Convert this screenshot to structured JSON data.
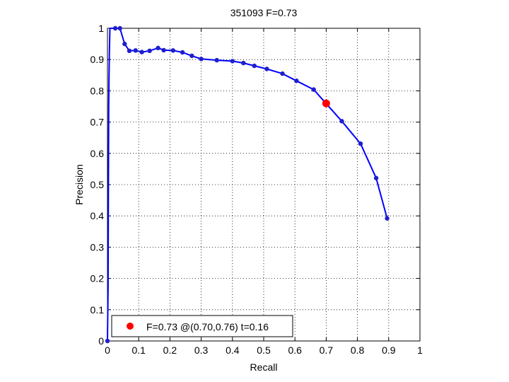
{
  "chart_data": {
    "type": "line",
    "title": "351093 F=0.73",
    "xlabel": "Recall",
    "ylabel": "Precision",
    "xlim": [
      0,
      1
    ],
    "ylim": [
      0,
      1
    ],
    "grid": true,
    "x_ticks": [
      "0",
      "0.1",
      "0.2",
      "0.3",
      "0.4",
      "0.5",
      "0.6",
      "0.7",
      "0.8",
      "0.9",
      "1"
    ],
    "y_ticks": [
      "0",
      "0.1",
      "0.2",
      "0.3",
      "0.4",
      "0.5",
      "0.6",
      "0.7",
      "0.8",
      "0.9",
      "1"
    ],
    "line_color": "#0000ff",
    "marker_color": "#1f1fcc",
    "curve": {
      "points": [
        [
          0.0,
          0.0
        ],
        [
          0.002,
          0.17
        ],
        [
          0.003,
          0.47
        ],
        [
          0.004,
          0.75
        ],
        [
          0.005,
          0.84
        ],
        [
          0.006,
          0.92
        ],
        [
          0.008,
          1.0
        ],
        [
          0.025,
          1.0
        ],
        [
          0.04,
          1.0
        ],
        [
          0.055,
          0.95
        ],
        [
          0.07,
          0.928
        ],
        [
          0.09,
          0.929
        ],
        [
          0.11,
          0.924
        ],
        [
          0.135,
          0.928
        ],
        [
          0.162,
          0.937
        ],
        [
          0.18,
          0.93
        ],
        [
          0.21,
          0.929
        ],
        [
          0.24,
          0.923
        ],
        [
          0.27,
          0.912
        ],
        [
          0.3,
          0.902
        ],
        [
          0.35,
          0.898
        ],
        [
          0.4,
          0.895
        ],
        [
          0.435,
          0.889
        ],
        [
          0.47,
          0.88
        ],
        [
          0.51,
          0.87
        ],
        [
          0.56,
          0.855
        ],
        [
          0.605,
          0.832
        ],
        [
          0.66,
          0.804
        ],
        [
          0.75,
          0.703
        ],
        [
          0.81,
          0.631
        ],
        [
          0.86,
          0.521
        ],
        [
          0.895,
          0.392
        ]
      ]
    },
    "marker_points": [
      [
        0.0,
        0.0
      ],
      [
        0.025,
        1.0
      ],
      [
        0.04,
        1.0
      ],
      [
        0.055,
        0.95
      ],
      [
        0.07,
        0.928
      ],
      [
        0.09,
        0.929
      ],
      [
        0.11,
        0.924
      ],
      [
        0.135,
        0.928
      ],
      [
        0.162,
        0.937
      ],
      [
        0.18,
        0.93
      ],
      [
        0.21,
        0.929
      ],
      [
        0.24,
        0.923
      ],
      [
        0.27,
        0.912
      ],
      [
        0.3,
        0.902
      ],
      [
        0.35,
        0.898
      ],
      [
        0.4,
        0.895
      ],
      [
        0.435,
        0.889
      ],
      [
        0.47,
        0.88
      ],
      [
        0.51,
        0.87
      ],
      [
        0.56,
        0.855
      ],
      [
        0.605,
        0.832
      ],
      [
        0.66,
        0.804
      ],
      [
        0.75,
        0.703
      ],
      [
        0.81,
        0.631
      ],
      [
        0.86,
        0.521
      ],
      [
        0.895,
        0.392
      ]
    ],
    "best_point": {
      "recall": 0.7,
      "precision": 0.76,
      "color": "#ff0000"
    },
    "legend": {
      "text": "F=0.73 @(0.70,0.76) t=0.16",
      "placement": "bottom-left"
    }
  }
}
